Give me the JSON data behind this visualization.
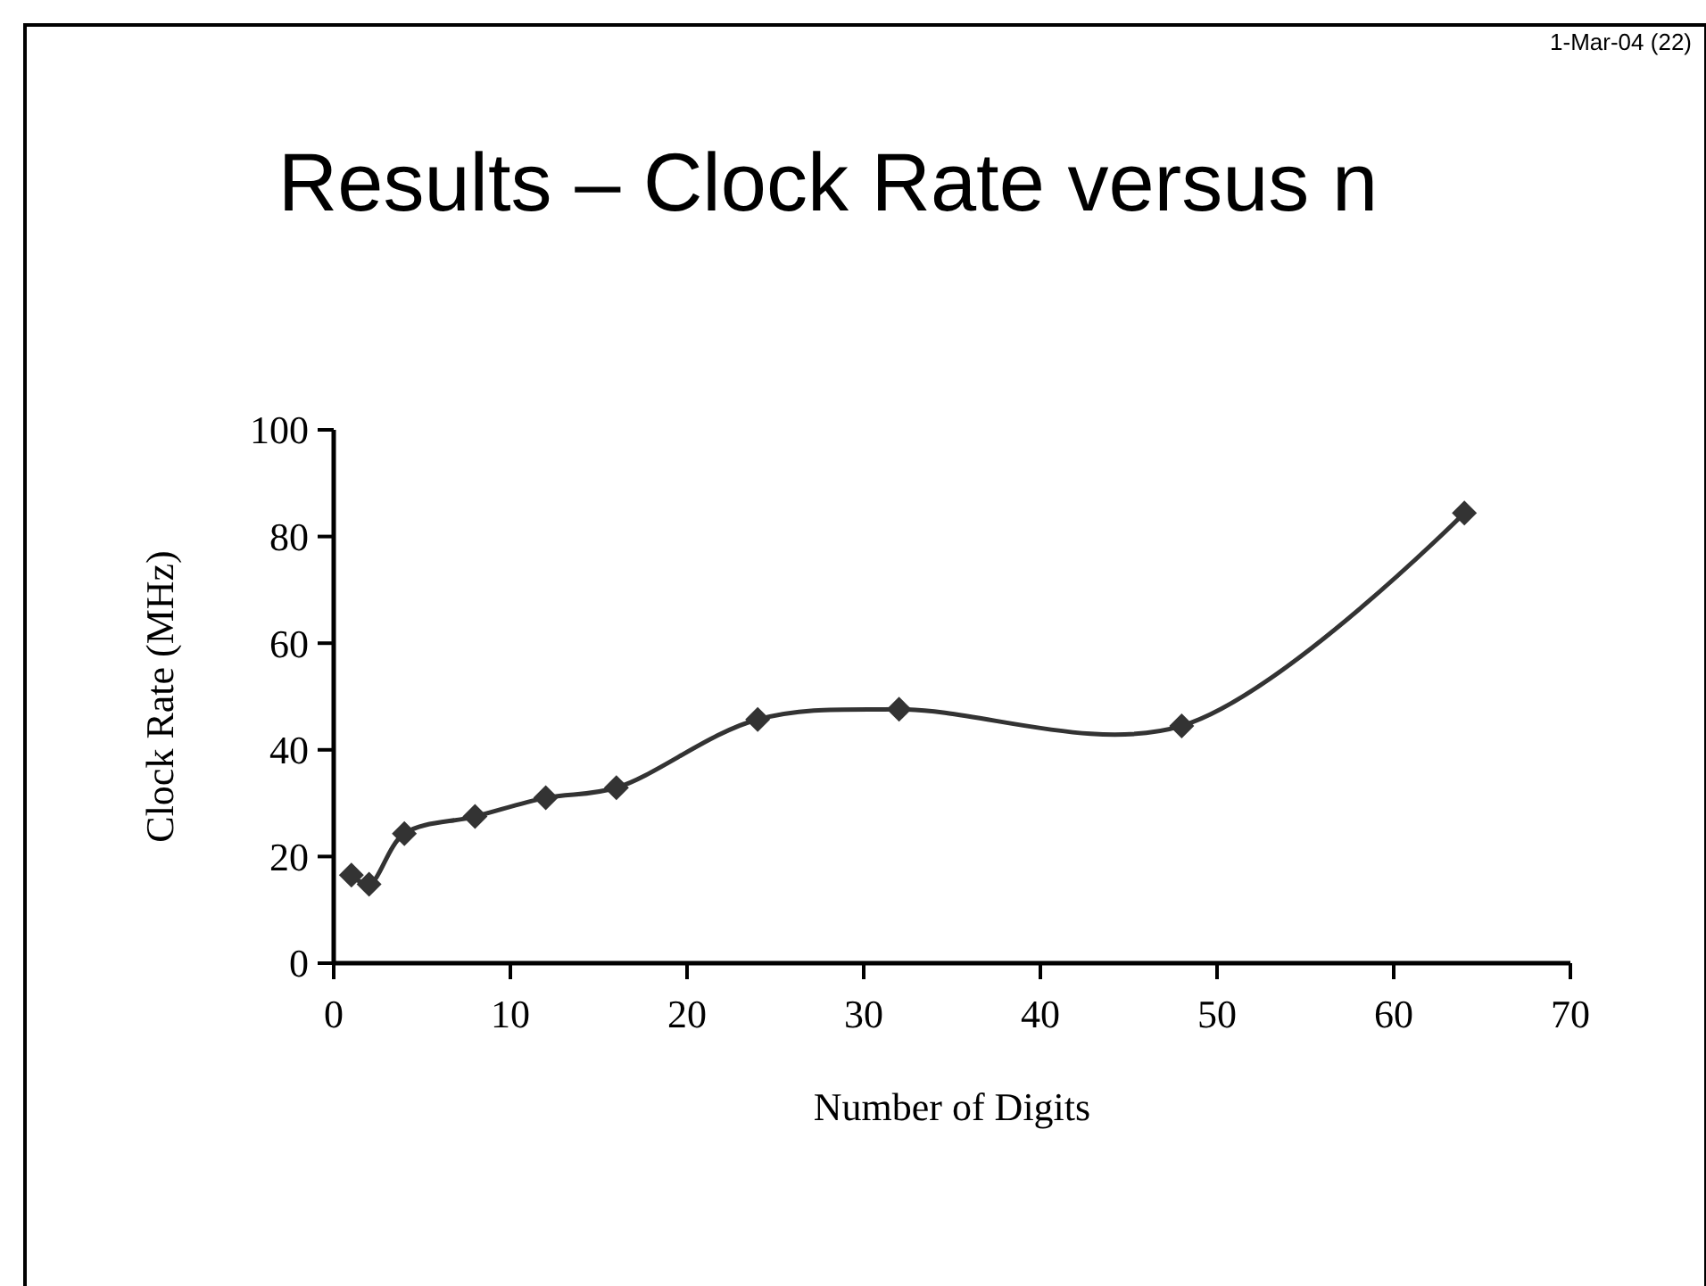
{
  "chart_data": {
    "type": "line",
    "title": "Results – Clock Rate versus n",
    "xlabel": "Number of Digits",
    "ylabel": "Clock Rate (MHz)",
    "annotations": [
      "1-Mar-04 (22)"
    ],
    "x": [
      1,
      2,
      4,
      8,
      12,
      16,
      24,
      32,
      48,
      64
    ],
    "series": [
      {
        "color": "#333333",
        "values": [
          16.5,
          14.8,
          24.3,
          27.5,
          31.0,
          32.9,
          45.7,
          47.6,
          44.5,
          84.4
        ]
      }
    ],
    "xlim": [
      0,
      70
    ],
    "xticks": [
      0,
      10,
      20,
      30,
      40,
      50,
      60,
      70
    ],
    "ylim": [
      0,
      100
    ],
    "yticks": [
      0,
      20,
      40,
      60,
      80,
      100
    ],
    "marker": "diamond",
    "line_style": "solid",
    "grid": false
  }
}
